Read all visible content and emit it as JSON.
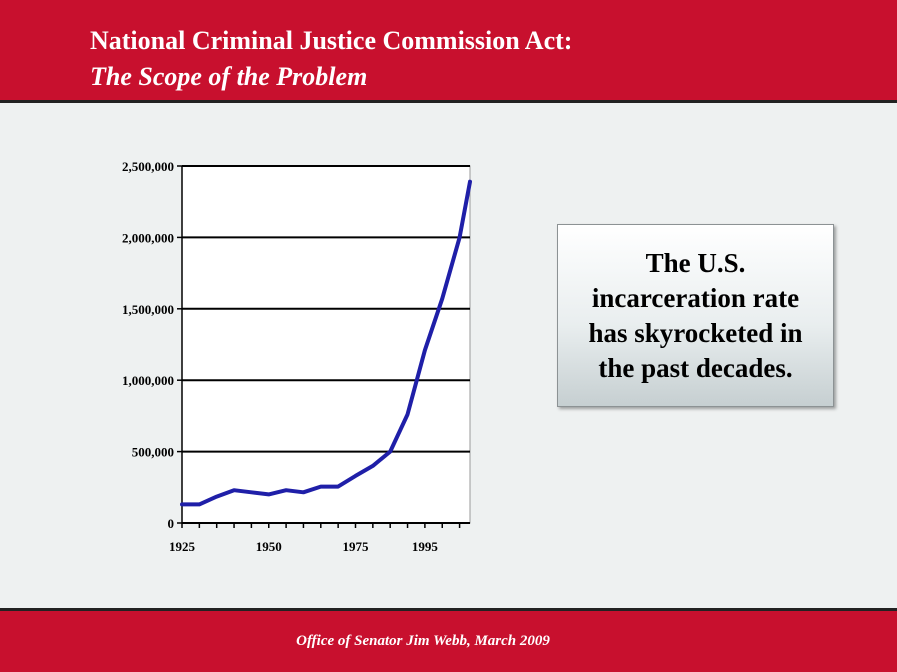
{
  "header": {
    "title_line1": "National Criminal Justice Commission Act:",
    "title_line2": "The Scope of the Problem",
    "background_color": "#c8102e"
  },
  "callout": {
    "text": "The U.S. incarceration rate has skyrocketed in the past decades."
  },
  "footer": {
    "text": "Office of Senator Jim Webb, March 2009"
  },
  "chart_data": {
    "type": "line",
    "title": "",
    "xlabel": "",
    "ylabel": "",
    "xlim": [
      1925,
      2008
    ],
    "ylim": [
      0,
      2500000
    ],
    "x_ticks": [
      1925,
      1950,
      1975,
      1995
    ],
    "x_tick_labels": [
      "1925",
      "1950",
      "1975",
      "1995"
    ],
    "y_ticks": [
      0,
      500000,
      1000000,
      1500000,
      2000000,
      2500000
    ],
    "y_tick_labels": [
      "0",
      "500,000",
      "1,000,000",
      "1,500,000",
      "2,000,000",
      "2,500,000"
    ],
    "grid": "horizontal",
    "legend": "none",
    "series": [
      {
        "color": "#1f1fa8",
        "x": [
          1925,
          1930,
          1935,
          1940,
          1945,
          1950,
          1955,
          1960,
          1965,
          1970,
          1975,
          1980,
          1985,
          1990,
          1995,
          2000,
          2005,
          2008
        ],
        "values": [
          130000,
          130000,
          185000,
          230000,
          215000,
          200000,
          230000,
          215000,
          255000,
          255000,
          330000,
          400000,
          500000,
          760000,
          1210000,
          1570000,
          2000000,
          2390000
        ]
      }
    ]
  }
}
